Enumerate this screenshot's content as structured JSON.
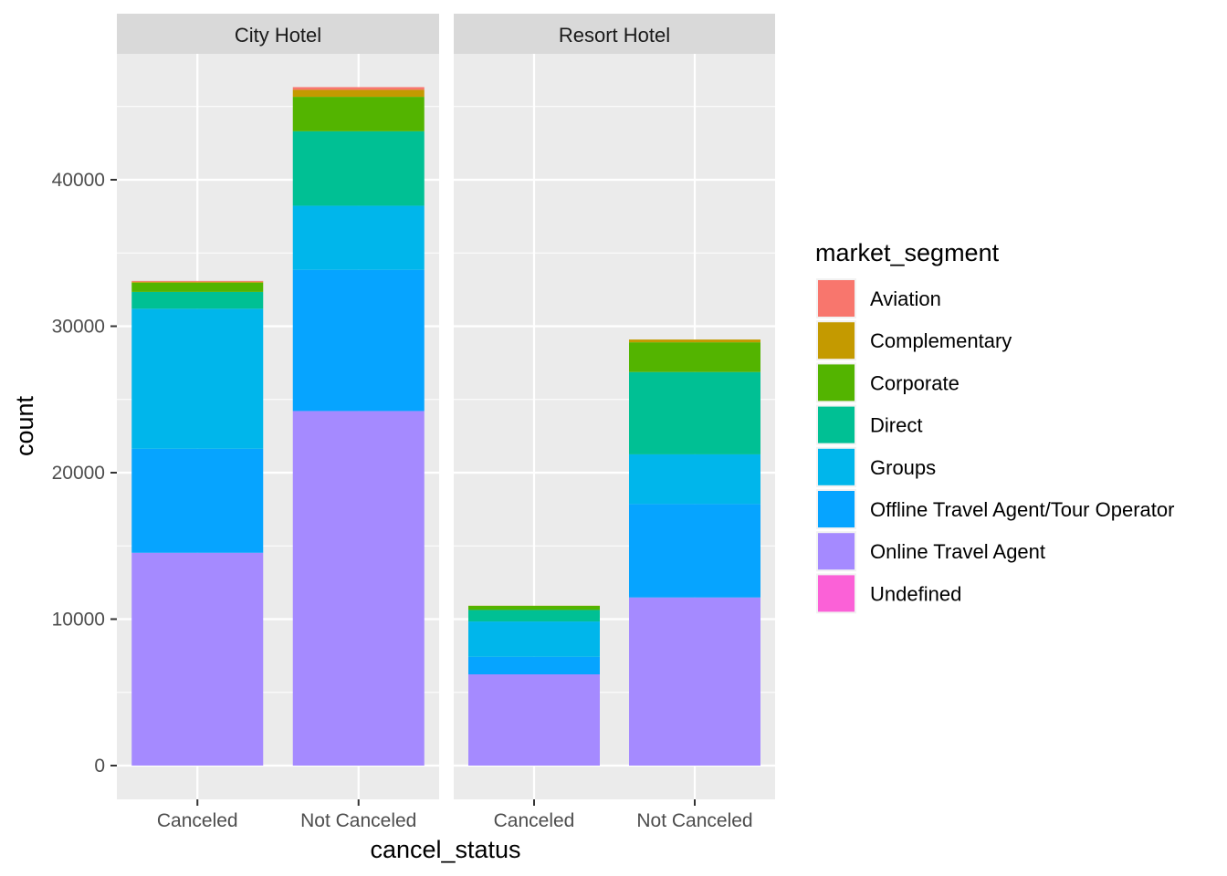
{
  "chart_data": {
    "type": "bar",
    "stacked": true,
    "facets": [
      "City Hotel",
      "Resort Hotel"
    ],
    "categories": [
      "Canceled",
      "Not Canceled"
    ],
    "xlabel": "cancel_status",
    "ylabel": "count",
    "ylim": [
      0,
      48500
    ],
    "y_ticks": [
      0,
      10000,
      20000,
      30000,
      40000
    ],
    "grid": true,
    "legend_position": "right",
    "legend_title": "market_segment",
    "series": [
      {
        "name": "Aviation",
        "color": "#F8766D",
        "values": {
          "City Hotel": [
            52,
            183
          ],
          "Resort Hotel": [
            0,
            0
          ]
        }
      },
      {
        "name": "Complementary",
        "color": "#C49A00",
        "values": {
          "City Hotel": [
            65,
            477
          ],
          "Resort Hotel": [
            11,
            190
          ]
        }
      },
      {
        "name": "Corporate",
        "color": "#53B400",
        "values": {
          "City Hotel": [
            633,
            2353
          ],
          "Resort Hotel": [
            279,
            2030
          ]
        }
      },
      {
        "name": "Direct",
        "color": "#00C094",
        "values": {
          "City Hotel": [
            1148,
            5083
          ],
          "Resort Hotel": [
            786,
            5621
          ]
        }
      },
      {
        "name": "Groups",
        "color": "#00B6EB",
        "values": {
          "City Hotel": [
            9562,
            4378
          ],
          "Resort Hotel": [
            2416,
            3393
          ]
        }
      },
      {
        "name": "Offline Travel Agent/Tour Operator",
        "color": "#06A4FF",
        "values": {
          "City Hotel": [
            7100,
            9640
          ],
          "Resort Hotel": [
            1194,
            6378
          ]
        }
      },
      {
        "name": "Online Travel Agent",
        "color": "#A58AFF",
        "values": {
          "City Hotel": [
            14530,
            24210
          ],
          "Resort Hotel": [
            6230,
            11480
          ]
        }
      },
      {
        "name": "Undefined",
        "color": "#FB61D7",
        "values": {
          "City Hotel": [
            2,
            0
          ],
          "Resort Hotel": [
            0,
            0
          ]
        }
      }
    ]
  }
}
